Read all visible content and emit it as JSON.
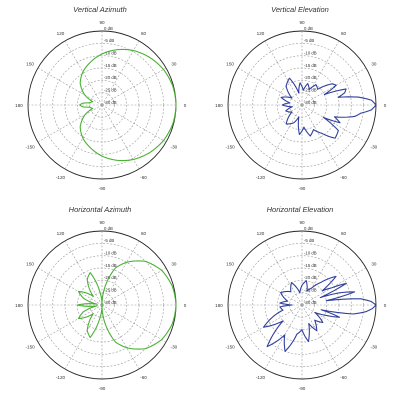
{
  "chart_data": [
    {
      "type": "polar-line",
      "title": "Vertical Azimuth",
      "series_color": "#49b233",
      "angle_unit": "degrees",
      "angle_labels": [
        "0",
        "30",
        "60",
        "90",
        "120",
        "150",
        "180",
        "-150",
        "-120",
        "-90",
        "-60",
        "-30"
      ],
      "radial_labels": [
        "0 dB",
        "-5 dB",
        "-10 dB",
        "-15 dB",
        "-20 dB",
        "-25 dB",
        "-30 dB"
      ],
      "radial_range_db": [
        -30,
        0
      ],
      "grid": true,
      "pattern": {
        "angles": [
          0,
          15,
          30,
          45,
          60,
          75,
          90,
          105,
          120,
          135,
          150,
          160,
          170,
          175,
          180,
          185,
          190,
          200,
          210,
          225,
          240,
          255,
          270,
          285,
          300,
          315,
          330,
          345,
          360
        ],
        "gain_db": [
          0,
          -0.3,
          -1.2,
          -2.7,
          -4.5,
          -6.8,
          -9.3,
          -12,
          -14.5,
          -17.5,
          -22,
          -26,
          -25,
          -22,
          -21,
          -22,
          -25,
          -26,
          -22,
          -17.5,
          -14.5,
          -12,
          -9.3,
          -6.8,
          -4.5,
          -2.7,
          -1.2,
          -0.3,
          0
        ]
      }
    },
    {
      "type": "polar-line",
      "title": "Vertical Elevation",
      "series_color": "#2f3f9e",
      "angle_unit": "degrees",
      "angle_labels": [
        "0",
        "30",
        "60",
        "90",
        "120",
        "150",
        "180",
        "-150",
        "-120",
        "-90",
        "-60",
        "-30"
      ],
      "radial_labels": [
        "0 dB",
        "-5 dB",
        "-10 dB",
        "-15 dB",
        "-20 dB",
        "-25 dB",
        "-30 dB"
      ],
      "radial_range_db": [
        -30,
        0
      ],
      "grid": true,
      "pattern": {
        "angles": [
          0,
          4,
          8,
          12,
          16,
          20,
          25,
          30,
          35,
          45,
          55,
          65,
          75,
          85,
          95,
          105,
          115,
          130,
          145,
          160,
          170,
          180,
          190,
          200,
          215,
          230,
          245,
          255,
          265,
          275,
          285,
          295,
          305,
          315,
          325,
          330,
          335,
          340,
          344,
          348,
          352,
          356,
          360
        ],
        "gain_db": [
          0,
          -1.8,
          -7,
          -15,
          -12,
          -11,
          -20,
          -14,
          -15,
          -21,
          -20,
          -23,
          -21,
          -24,
          -21,
          -25,
          -18,
          -20,
          -25,
          -21,
          -25,
          -22,
          -26,
          -23,
          -25,
          -20,
          -22,
          -25,
          -18,
          -21,
          -17,
          -19,
          -16,
          -11,
          -12,
          -20,
          -13,
          -16,
          -12,
          -8,
          -6,
          -1.8,
          0
        ]
      }
    },
    {
      "type": "polar-line",
      "title": "Horizontal Azimuth",
      "series_color": "#49b233",
      "angle_unit": "degrees",
      "angle_labels": [
        "0",
        "30",
        "60",
        "90",
        "120",
        "150",
        "180",
        "-150",
        "-120",
        "-90",
        "-60",
        "-30"
      ],
      "radial_labels": [
        "0 dB",
        "-5 dB",
        "-10 dB",
        "-15 dB",
        "-20 dB",
        "-25 dB",
        "-30 dB"
      ],
      "radial_range_db": [
        -30,
        0
      ],
      "grid": true,
      "pattern": {
        "angles": [
          0,
          15,
          30,
          45,
          60,
          70,
          80,
          90,
          100,
          110,
          120,
          135,
          150,
          160,
          170,
          180,
          190,
          200,
          210,
          225,
          240,
          250,
          260,
          270,
          280,
          290,
          300,
          315,
          330,
          345,
          360
        ],
        "gain_db": [
          0,
          -0.5,
          -2,
          -5,
          -10,
          -14,
          -22,
          -30,
          -24,
          -16,
          -18,
          -25,
          -19,
          -22,
          -28,
          -20,
          -28,
          -22,
          -19,
          -25,
          -18,
          -16,
          -24,
          -30,
          -22,
          -14,
          -10,
          -5,
          -2,
          -0.5,
          0
        ]
      }
    },
    {
      "type": "polar-line",
      "title": "Horizontal Elevation",
      "series_color": "#2f3f9e",
      "angle_unit": "degrees",
      "angle_labels": [
        "0",
        "30",
        "60",
        "90",
        "120",
        "150",
        "180",
        "-150",
        "-120",
        "-90",
        "-60",
        "-30"
      ],
      "radial_labels": [
        "0 dB",
        "-5 dB",
        "-10 dB",
        "-15 dB",
        "-20 dB",
        "-25 dB",
        "-30 dB"
      ],
      "radial_range_db": [
        -30,
        0
      ],
      "grid": true,
      "pattern": {
        "angles": [
          0,
          3,
          6,
          10,
          14,
          18,
          22,
          26,
          30,
          35,
          40,
          50,
          60,
          70,
          80,
          90,
          100,
          115,
          130,
          150,
          165,
          175,
          180,
          185,
          195,
          210,
          220,
          230,
          240,
          250,
          260,
          270,
          280,
          290,
          300,
          310,
          320,
          330,
          336,
          342,
          346,
          350,
          354,
          357,
          360
        ],
        "gain_db": [
          0,
          -2,
          -6,
          -20,
          -8,
          -14,
          -22,
          -10,
          -16,
          -20,
          -12,
          -18,
          -22,
          -24,
          -20,
          -22,
          -25,
          -20,
          -23,
          -20,
          -24,
          -21,
          -26,
          -21,
          -22,
          -12,
          -20,
          -8,
          -16,
          -10,
          -18,
          -20,
          -15,
          -22,
          -18,
          -22,
          -19,
          -24,
          -20,
          -14,
          -22,
          -9,
          -4,
          -1.5,
          0
        ]
      }
    }
  ]
}
